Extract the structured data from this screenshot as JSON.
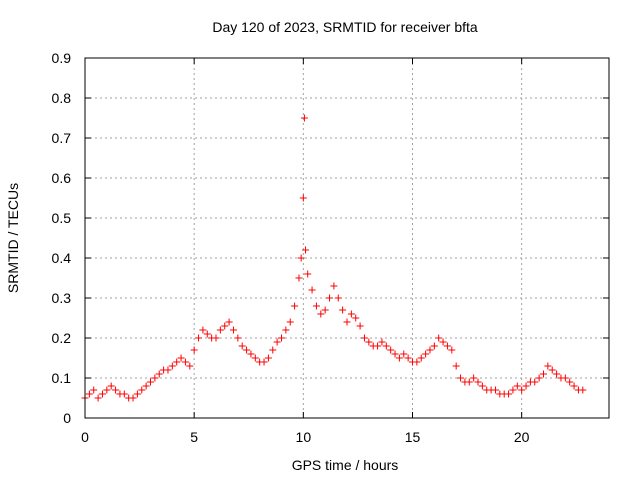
{
  "chart_data": {
    "type": "scatter",
    "title": "Day 120 of 2023, SRMTID for receiver bfta",
    "xlabel": "GPS time / hours",
    "ylabel": "SRMTID / TECUs",
    "xlim": [
      0,
      24
    ],
    "ylim": [
      0,
      0.9
    ],
    "xticks": [
      0,
      5,
      10,
      15,
      20
    ],
    "yticks": [
      0,
      0.1,
      0.2,
      0.3,
      0.4,
      0.5,
      0.6,
      0.7,
      0.8,
      0.9
    ],
    "xtick_labels": [
      "0",
      "5",
      "10",
      "15",
      "20"
    ],
    "ytick_labels": [
      "0",
      "0.1",
      "0.2",
      "0.3",
      "0.4",
      "0.5",
      "0.6",
      "0.7",
      "0.8",
      "0.9"
    ],
    "grid": true,
    "marker": "+",
    "color": "#ff0000",
    "series": [
      {
        "name": "SRMTID",
        "x": [
          0.0,
          0.2,
          0.4,
          0.6,
          0.8,
          1.0,
          1.2,
          1.4,
          1.6,
          1.8,
          2.0,
          2.2,
          2.4,
          2.6,
          2.8,
          3.0,
          3.2,
          3.4,
          3.6,
          3.8,
          4.0,
          4.2,
          4.4,
          4.6,
          4.8,
          5.0,
          5.2,
          5.4,
          5.6,
          5.8,
          6.0,
          6.2,
          6.4,
          6.6,
          6.8,
          7.0,
          7.2,
          7.4,
          7.6,
          7.8,
          8.0,
          8.2,
          8.4,
          8.6,
          8.8,
          9.0,
          9.2,
          9.4,
          9.6,
          9.8,
          9.9,
          10.0,
          10.05,
          10.1,
          10.2,
          10.4,
          10.6,
          10.8,
          11.0,
          11.2,
          11.4,
          11.6,
          11.8,
          12.0,
          12.2,
          12.4,
          12.6,
          12.8,
          13.0,
          13.2,
          13.4,
          13.6,
          13.8,
          14.0,
          14.2,
          14.4,
          14.6,
          14.8,
          15.0,
          15.2,
          15.4,
          15.6,
          15.8,
          16.0,
          16.2,
          16.4,
          16.6,
          16.8,
          17.0,
          17.2,
          17.4,
          17.6,
          17.8,
          18.0,
          18.2,
          18.4,
          18.6,
          18.8,
          19.0,
          19.2,
          19.4,
          19.6,
          19.8,
          20.0,
          20.2,
          20.4,
          20.6,
          20.8,
          21.0,
          21.2,
          21.4,
          21.6,
          21.8,
          22.0,
          22.2,
          22.4,
          22.6,
          22.8
        ],
        "y": [
          0.05,
          0.06,
          0.07,
          0.05,
          0.06,
          0.07,
          0.08,
          0.07,
          0.06,
          0.06,
          0.05,
          0.05,
          0.06,
          0.07,
          0.08,
          0.09,
          0.1,
          0.11,
          0.12,
          0.12,
          0.13,
          0.14,
          0.15,
          0.14,
          0.13,
          0.17,
          0.2,
          0.22,
          0.21,
          0.2,
          0.2,
          0.22,
          0.23,
          0.24,
          0.22,
          0.2,
          0.18,
          0.17,
          0.16,
          0.15,
          0.14,
          0.14,
          0.15,
          0.17,
          0.19,
          0.2,
          0.22,
          0.24,
          0.28,
          0.35,
          0.4,
          0.55,
          0.75,
          0.42,
          0.36,
          0.32,
          0.28,
          0.26,
          0.27,
          0.3,
          0.33,
          0.3,
          0.27,
          0.24,
          0.26,
          0.25,
          0.23,
          0.2,
          0.19,
          0.18,
          0.18,
          0.19,
          0.18,
          0.17,
          0.16,
          0.15,
          0.16,
          0.15,
          0.14,
          0.14,
          0.15,
          0.16,
          0.17,
          0.18,
          0.2,
          0.19,
          0.18,
          0.17,
          0.13,
          0.1,
          0.09,
          0.09,
          0.1,
          0.09,
          0.08,
          0.07,
          0.07,
          0.07,
          0.06,
          0.06,
          0.06,
          0.07,
          0.08,
          0.07,
          0.08,
          0.09,
          0.09,
          0.1,
          0.11,
          0.13,
          0.12,
          0.11,
          0.1,
          0.1,
          0.09,
          0.08,
          0.07,
          0.07
        ]
      }
    ]
  }
}
